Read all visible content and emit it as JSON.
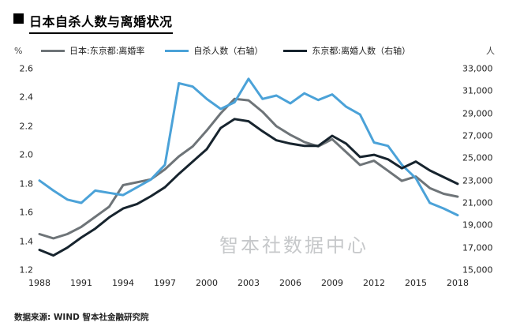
{
  "header": {
    "title": "日本自杀人数与离婚状况"
  },
  "legend": [
    {
      "label": "日本:东京都:离婚率",
      "color": "#6e7478"
    },
    {
      "label": "自杀人数（右轴）",
      "color": "#4ba2d8"
    },
    {
      "label": "东京都:离婚人数（右轴）",
      "color": "#17242e"
    }
  ],
  "axes": {
    "left_unit": "%",
    "right_unit": "人",
    "left_ticks": [
      "2.6",
      "2.4",
      "2.2",
      "2.0",
      "1.8",
      "1.6",
      "1.4",
      "1.2"
    ],
    "right_ticks": [
      "33,000",
      "31,000",
      "29,000",
      "27,000",
      "25,000",
      "23,000",
      "21,000",
      "19,000",
      "17,000",
      "15,000"
    ],
    "x_ticks": [
      "1988",
      "1991",
      "1994",
      "1997",
      "2000",
      "2003",
      "2006",
      "2009",
      "2012",
      "2015",
      "2018"
    ]
  },
  "watermark": "智本社数据中心",
  "footer": "数据来源: WIND 智本社金融研究院",
  "chart_data": {
    "type": "line",
    "title": "日本自杀人数与离婚状况",
    "xlabel": "",
    "ylabel_left": "%",
    "ylabel_right": "人",
    "x_range": [
      1988,
      2018
    ],
    "left_range": [
      1.2,
      2.6
    ],
    "right_range": [
      15000,
      33000
    ],
    "grid": false,
    "legend_position": "top",
    "x": [
      1988,
      1989,
      1990,
      1991,
      1992,
      1993,
      1994,
      1995,
      1996,
      1997,
      1998,
      1999,
      2000,
      2001,
      2002,
      2003,
      2004,
      2005,
      2006,
      2007,
      2008,
      2009,
      2010,
      2011,
      2012,
      2013,
      2014,
      2015,
      2016,
      2017,
      2018
    ],
    "series": [
      {
        "key": "divorce-rate",
        "name": "日本:东京都:离婚率",
        "axis": "left",
        "color": "#6e7478",
        "values": [
          1.45,
          1.42,
          1.45,
          1.5,
          1.57,
          1.64,
          1.79,
          1.81,
          1.83,
          1.9,
          1.99,
          2.06,
          2.17,
          2.29,
          2.39,
          2.38,
          2.3,
          2.2,
          2.14,
          2.09,
          2.06,
          2.11,
          2.02,
          1.93,
          1.96,
          1.89,
          1.82,
          1.85,
          1.77,
          1.73,
          1.71
        ]
      },
      {
        "key": "suicides",
        "name": "自杀人数（右轴）",
        "axis": "right",
        "color": "#4ba2d8",
        "values": [
          23000,
          22100,
          21300,
          21000,
          22100,
          21900,
          21700,
          22400,
          23100,
          24400,
          31700,
          31400,
          30300,
          29400,
          30000,
          32100,
          30300,
          30600,
          29900,
          30800,
          30200,
          30700,
          29600,
          28900,
          26400,
          26100,
          24400,
          23200,
          21000,
          20500,
          19900
        ]
      },
      {
        "key": "divorce-count",
        "name": "东京都:离婚人数（右轴）",
        "axis": "right",
        "color": "#17242e",
        "values": [
          16800,
          16300,
          17000,
          17900,
          18700,
          19700,
          20500,
          20900,
          21600,
          22400,
          23600,
          24700,
          25800,
          27700,
          28500,
          28300,
          27400,
          26600,
          26300,
          26100,
          26100,
          27000,
          26300,
          25100,
          25300,
          24900,
          24100,
          24700,
          23900,
          23300,
          22700
        ]
      }
    ]
  }
}
